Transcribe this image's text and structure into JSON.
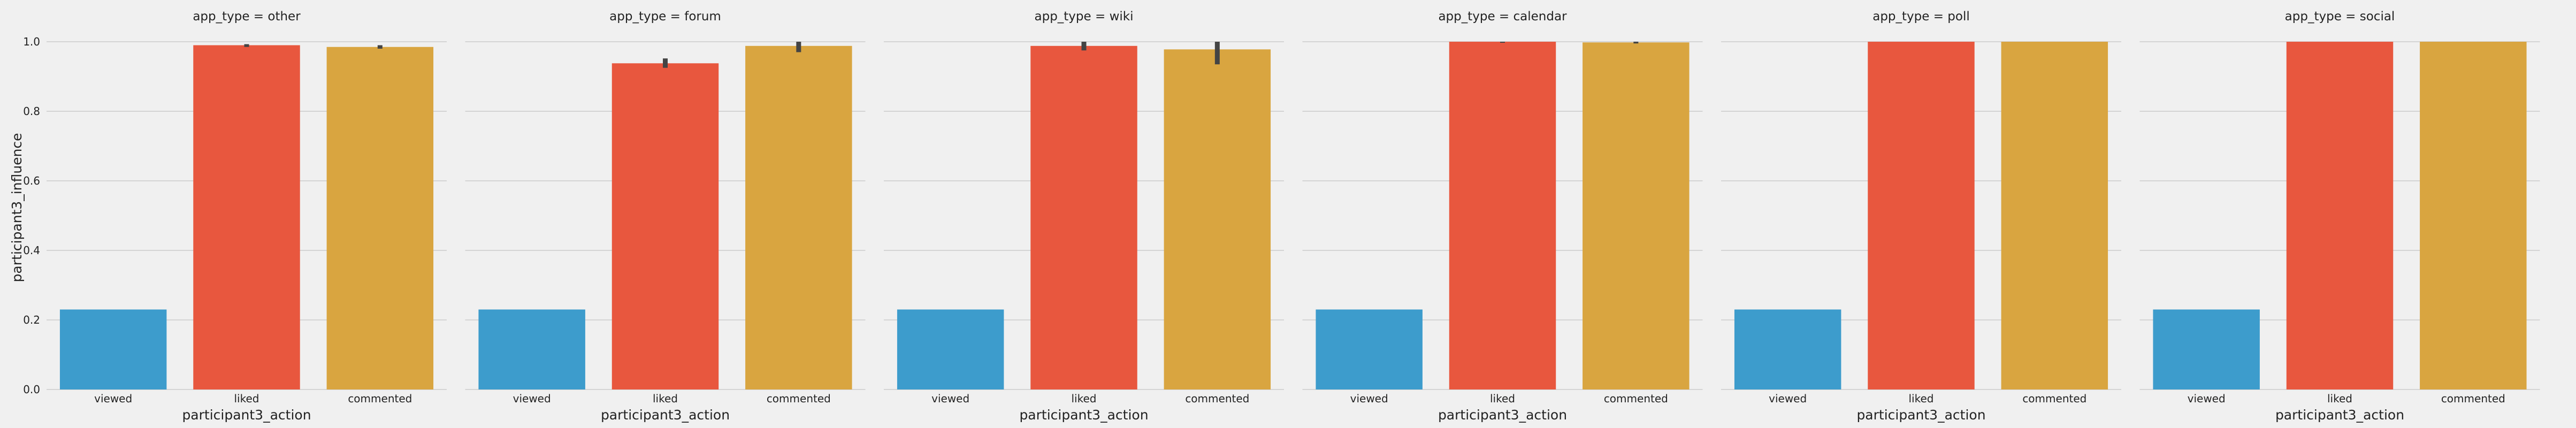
{
  "chart_data": {
    "type": "bar",
    "facet_variable": "app_type",
    "xlabel": "participant3_action",
    "ylabel": "participant3_influence",
    "categories": [
      "viewed",
      "liked",
      "commented"
    ],
    "colors": [
      "#3d9ccc",
      "#e8573e",
      "#d9a540"
    ],
    "ylim": [
      0,
      1.0
    ],
    "yticks": [
      "0.0",
      "0.2",
      "0.4",
      "0.6",
      "0.8",
      "1.0"
    ],
    "grid": "y",
    "error_bars": true,
    "facets": [
      {
        "title": "app_type = other",
        "values": [
          0.23,
          0.99,
          0.985
        ],
        "err_low": [
          0.23,
          0.985,
          0.98
        ],
        "err_high": [
          0.23,
          0.993,
          0.99
        ]
      },
      {
        "title": "app_type = forum",
        "values": [
          0.23,
          0.938,
          0.988
        ],
        "err_low": [
          0.23,
          0.925,
          0.97
        ],
        "err_high": [
          0.23,
          0.952,
          1.0
        ]
      },
      {
        "title": "app_type = wiki",
        "values": [
          0.23,
          0.988,
          0.978
        ],
        "err_low": [
          0.23,
          0.975,
          0.935
        ],
        "err_high": [
          0.23,
          1.0,
          1.0
        ]
      },
      {
        "title": "app_type = calendar",
        "values": [
          0.23,
          1.0,
          0.998
        ],
        "err_low": [
          0.23,
          0.997,
          0.995
        ],
        "err_high": [
          0.23,
          1.0,
          1.0
        ]
      },
      {
        "title": "app_type = poll",
        "values": [
          0.23,
          1.0,
          1.0
        ],
        "err_low": [
          0.23,
          1.0,
          1.0
        ],
        "err_high": [
          0.23,
          1.0,
          1.0
        ]
      },
      {
        "title": "app_type = social",
        "values": [
          0.23,
          1.0,
          1.0
        ],
        "err_low": [
          0.23,
          1.0,
          1.0
        ],
        "err_high": [
          0.23,
          1.0,
          1.0
        ]
      }
    ]
  }
}
